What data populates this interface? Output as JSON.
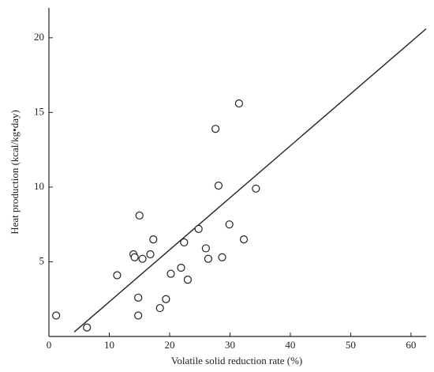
{
  "chart_data": {
    "type": "scatter",
    "x_label": "Volatile solid reduction rate (%)",
    "y_label": "Heat production (kcal/kg•day)",
    "x": [
      1.2,
      6.3,
      11.3,
      14.0,
      14.2,
      15.0,
      15.5,
      14.8,
      14.8,
      16.8,
      17.3,
      18.4,
      19.4,
      20.2,
      21.9,
      22.4,
      23.0,
      24.8,
      26.0,
      26.4,
      27.6,
      28.1,
      28.7,
      29.9,
      31.5,
      32.3,
      34.3
    ],
    "values": [
      1.4,
      0.6,
      4.1,
      5.5,
      5.3,
      8.1,
      5.2,
      2.6,
      1.4,
      5.5,
      6.5,
      1.9,
      2.5,
      4.2,
      4.6,
      6.3,
      3.8,
      7.2,
      5.9,
      5.2,
      13.9,
      10.1,
      5.3,
      7.5,
      15.6,
      6.5,
      9.9
    ],
    "color": "#222222",
    "line": {
      "x": [
        4.2,
        62.5
      ],
      "values": [
        0.3,
        20.6
      ]
    },
    "xlim": [
      0,
      62.5
    ],
    "ylim": [
      0,
      22
    ],
    "xticks": [
      0,
      10,
      20,
      30,
      40,
      50,
      60
    ],
    "yticks": [
      5,
      10,
      15,
      20
    ]
  }
}
